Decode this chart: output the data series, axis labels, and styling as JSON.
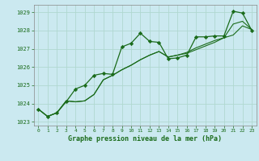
{
  "title": "Graphe pression niveau de la mer (hPa)",
  "background_color": "#cbe9f0",
  "grid_color": "#b0d8d0",
  "line_color": "#1a6b1a",
  "xlim": [
    -0.5,
    23.5
  ],
  "ylim": [
    1022.8,
    1029.4
  ],
  "yticks": [
    1023,
    1024,
    1025,
    1026,
    1027,
    1028,
    1029
  ],
  "xticks": [
    0,
    1,
    2,
    3,
    4,
    5,
    6,
    7,
    8,
    9,
    10,
    11,
    12,
    13,
    14,
    15,
    16,
    17,
    18,
    19,
    20,
    21,
    22,
    23
  ],
  "series1_x": [
    0,
    1,
    2,
    3,
    4,
    5,
    6,
    7,
    8,
    9,
    10,
    11,
    12,
    13,
    14,
    15,
    16,
    17,
    18,
    19,
    20,
    21,
    22,
    23
  ],
  "series1_y": [
    1023.7,
    1023.3,
    1023.5,
    1024.1,
    1024.8,
    1025.0,
    1025.55,
    1025.65,
    1025.6,
    1027.1,
    1027.3,
    1027.85,
    1027.4,
    1027.35,
    1026.45,
    1026.5,
    1026.65,
    1027.65,
    1027.65,
    1027.7,
    1027.7,
    1029.05,
    1028.95,
    1028.0
  ],
  "series2_x": [
    0,
    1,
    2,
    3,
    4,
    5,
    6,
    7,
    8,
    9,
    10,
    11,
    12,
    13,
    14,
    15,
    16,
    17,
    18,
    19,
    20,
    21,
    22,
    23
  ],
  "series2_y": [
    1023.7,
    1023.3,
    1023.5,
    1024.15,
    1024.1,
    1024.15,
    1024.5,
    1025.3,
    1025.55,
    1025.85,
    1026.1,
    1026.4,
    1026.65,
    1026.85,
    1026.55,
    1026.65,
    1026.75,
    1026.95,
    1027.15,
    1027.35,
    1027.6,
    1027.75,
    1028.25,
    1028.05
  ],
  "series3_x": [
    0,
    1,
    2,
    3,
    4,
    5,
    6,
    7,
    8,
    9,
    10,
    11,
    12,
    13,
    14,
    15,
    16,
    17,
    18,
    19,
    20,
    21,
    22,
    23
  ],
  "series3_y": [
    1023.7,
    1023.3,
    1023.5,
    1024.15,
    1024.1,
    1024.15,
    1024.5,
    1025.3,
    1025.55,
    1025.85,
    1026.1,
    1026.4,
    1026.65,
    1026.85,
    1026.55,
    1026.65,
    1026.8,
    1027.05,
    1027.25,
    1027.45,
    1027.6,
    1028.35,
    1028.5,
    1028.05
  ]
}
